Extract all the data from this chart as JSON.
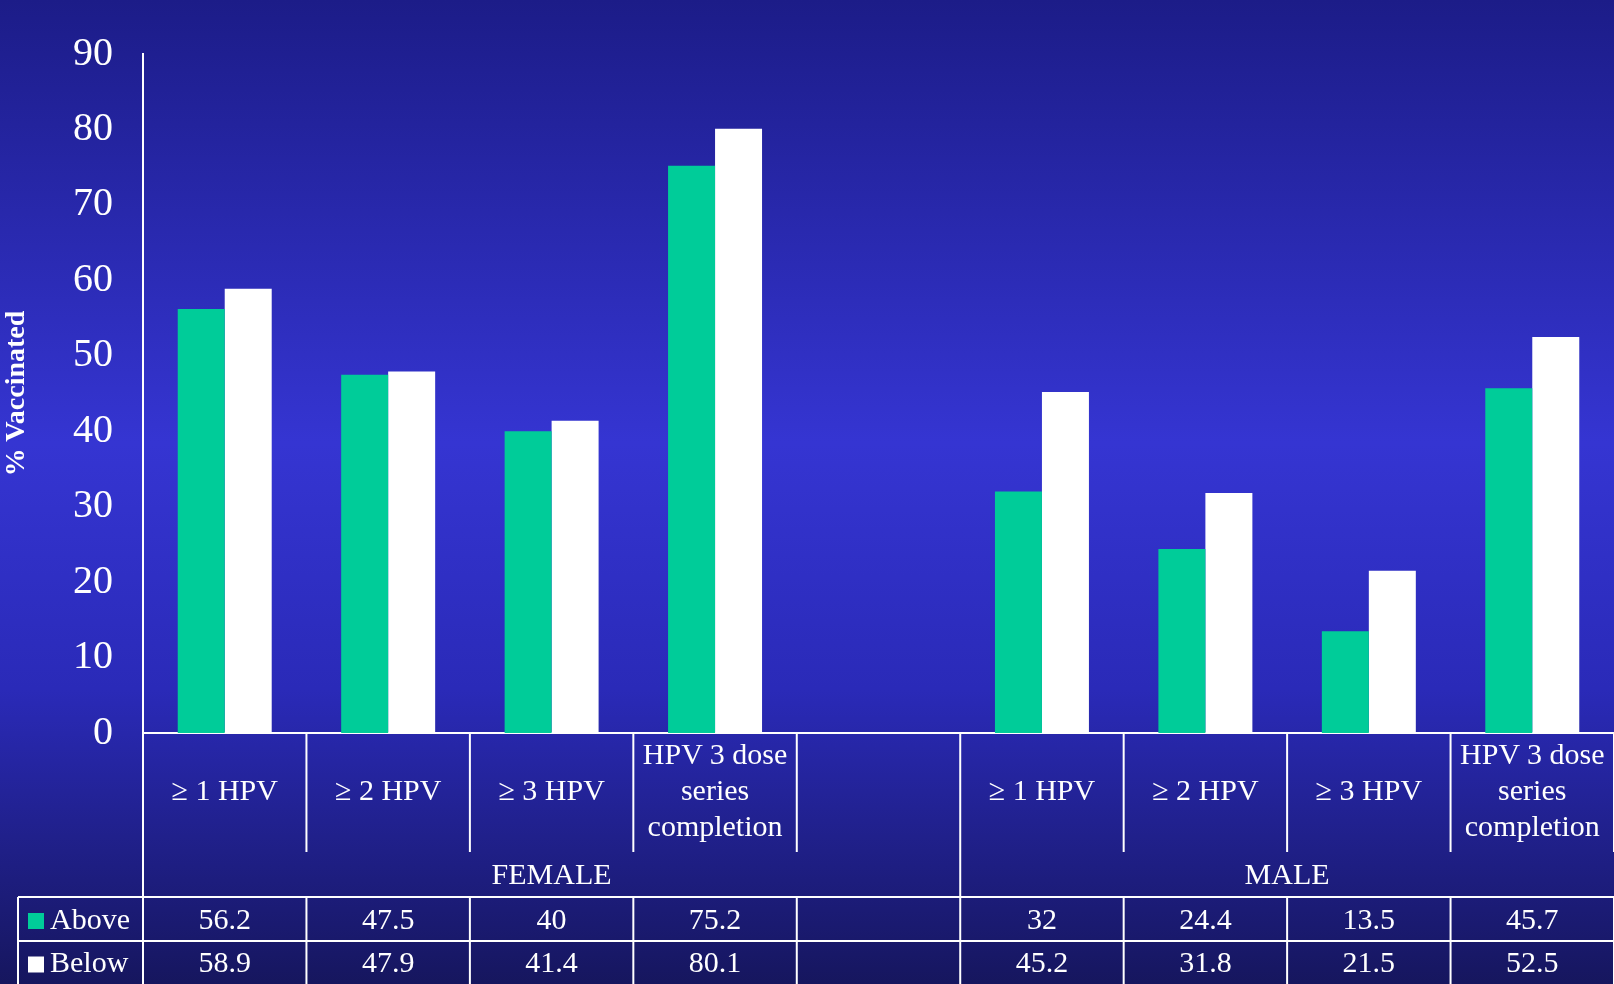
{
  "chart_data": {
    "type": "bar",
    "ylabel": "% Vaccinated",
    "categories": [
      "≥ 1 HPV",
      "≥ 2 HPV",
      "≥ 3 HPV",
      "HPV 3 dose series completion",
      null,
      "≥ 1 HPV",
      "≥ 2 HPV",
      "≥ 3 HPV",
      "HPV 3 dose series completion"
    ],
    "series": [
      {
        "name": "Above",
        "color": "#00cc99",
        "values": [
          56.2,
          47.5,
          40,
          75.2,
          null,
          32,
          24.4,
          13.5,
          45.7
        ]
      },
      {
        "name": "Below",
        "color": "#ffffff",
        "values": [
          58.9,
          47.9,
          41.4,
          80.1,
          null,
          45.2,
          31.8,
          21.5,
          52.5
        ]
      }
    ],
    "annotations": [
      "FEMALE",
      "MALE"
    ],
    "ylim": [
      0,
      90
    ],
    "yticks": [
      0,
      10,
      20,
      30,
      40,
      50,
      60,
      70,
      80,
      90
    ],
    "grid": false,
    "legend": "bottom left",
    "data_labels": true
  }
}
